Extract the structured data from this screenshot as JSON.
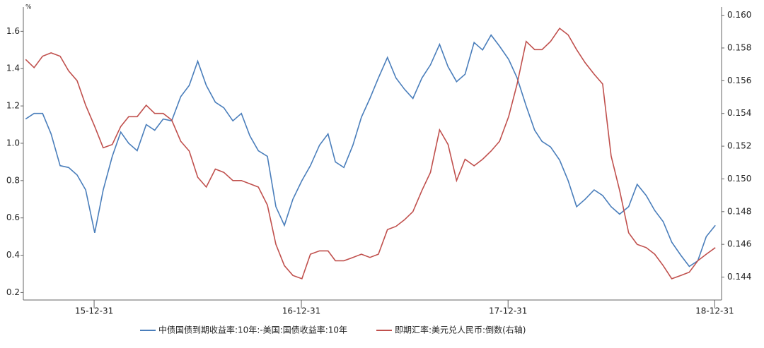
{
  "chart_data": {
    "type": "line",
    "y_unit": "%",
    "x": [
      "2015-09-01",
      "2015-09-16",
      "2015-10-01",
      "2015-10-16",
      "2015-11-01",
      "2015-11-16",
      "2015-12-01",
      "2015-12-16",
      "2016-01-01",
      "2016-01-16",
      "2016-02-01",
      "2016-02-16",
      "2016-03-01",
      "2016-03-16",
      "2016-04-01",
      "2016-04-16",
      "2016-05-01",
      "2016-05-16",
      "2016-06-01",
      "2016-06-16",
      "2016-07-01",
      "2016-07-16",
      "2016-08-01",
      "2016-08-16",
      "2016-09-01",
      "2016-09-16",
      "2016-10-01",
      "2016-10-16",
      "2016-11-01",
      "2016-11-16",
      "2016-12-01",
      "2016-12-16",
      "2017-01-01",
      "2017-01-16",
      "2017-02-01",
      "2017-02-16",
      "2017-03-01",
      "2017-03-16",
      "2017-04-01",
      "2017-04-16",
      "2017-05-01",
      "2017-05-16",
      "2017-06-01",
      "2017-06-16",
      "2017-07-01",
      "2017-07-16",
      "2017-08-01",
      "2017-08-16",
      "2017-09-01",
      "2017-09-16",
      "2017-10-01",
      "2017-10-16",
      "2017-11-01",
      "2017-11-16",
      "2017-12-01",
      "2017-12-16",
      "2018-01-01",
      "2018-01-16",
      "2018-02-01",
      "2018-02-16",
      "2018-03-01",
      "2018-03-16",
      "2018-04-01",
      "2018-04-16",
      "2018-05-01",
      "2018-05-16",
      "2018-06-01",
      "2018-06-16",
      "2018-07-01",
      "2018-07-16",
      "2018-08-01",
      "2018-08-16",
      "2018-09-01",
      "2018-09-16",
      "2018-10-01",
      "2018-10-16",
      "2018-11-01",
      "2018-11-16",
      "2018-12-01",
      "2018-12-16",
      "2019-01-01"
    ],
    "series": [
      {
        "name": "中债国债到期收益率:10年:-美国:国债收益率:10年",
        "color": "#4a7ebb",
        "axis": "y",
        "values": [
          1.13,
          1.16,
          1.16,
          1.05,
          0.88,
          0.87,
          0.83,
          0.75,
          0.52,
          0.75,
          0.93,
          1.06,
          1.0,
          0.96,
          1.1,
          1.07,
          1.13,
          1.12,
          1.25,
          1.31,
          1.44,
          1.31,
          1.22,
          1.19,
          1.12,
          1.16,
          1.04,
          0.96,
          0.93,
          0.66,
          0.56,
          0.7,
          0.8,
          0.88,
          0.99,
          1.05,
          0.9,
          0.87,
          0.99,
          1.14,
          1.24,
          1.35,
          1.46,
          1.35,
          1.29,
          1.24,
          1.35,
          1.42,
          1.53,
          1.41,
          1.33,
          1.37,
          1.54,
          1.5,
          1.58,
          1.52,
          1.45,
          1.35,
          1.2,
          1.07,
          1.01,
          0.98,
          0.91,
          0.8,
          0.66,
          0.7,
          0.75,
          0.72,
          0.66,
          0.62,
          0.66,
          0.78,
          0.72,
          0.64,
          0.58,
          0.47,
          0.4,
          0.34,
          0.37,
          0.5,
          0.56
        ]
      },
      {
        "name": "即期汇率:美元兑人民币:倒数(右轴)",
        "color": "#c0504d",
        "axis": "y2",
        "values": [
          0.1573,
          0.1568,
          0.1575,
          0.1577,
          0.1575,
          0.1566,
          0.156,
          0.1545,
          0.1532,
          0.1519,
          0.1521,
          0.1532,
          0.1538,
          0.1538,
          0.1545,
          0.154,
          0.154,
          0.1536,
          0.1523,
          0.1517,
          0.1501,
          0.1495,
          0.1506,
          0.1504,
          0.1499,
          0.1499,
          0.1497,
          0.1495,
          0.1484,
          0.146,
          0.1447,
          0.1441,
          0.1439,
          0.1454,
          0.1456,
          0.1456,
          0.145,
          0.145,
          0.1452,
          0.1454,
          0.1452,
          0.1454,
          0.1469,
          0.1471,
          0.1475,
          0.148,
          0.1493,
          0.1504,
          0.153,
          0.1521,
          0.1499,
          0.1512,
          0.1508,
          0.1512,
          0.1517,
          0.1523,
          0.1538,
          0.1558,
          0.1584,
          0.1579,
          0.1579,
          0.1584,
          0.1592,
          0.1588,
          0.1579,
          0.1571,
          0.1564,
          0.1558,
          0.1514,
          0.1493,
          0.1467,
          0.146,
          0.1458,
          0.1454,
          0.1447,
          0.1439,
          0.1441,
          0.1443,
          0.145,
          0.1454,
          0.1458
        ]
      }
    ],
    "xlim": [
      "2015-08-28",
      "2019-01-12"
    ],
    "xticks": [
      {
        "value": "2015-12-31",
        "label": "15-12-31"
      },
      {
        "value": "2016-12-31",
        "label": "16-12-31"
      },
      {
        "value": "2017-12-31",
        "label": "17-12-31"
      },
      {
        "value": "2018-12-31",
        "label": "18-12-31"
      }
    ],
    "ylim": [
      0.16,
      1.73
    ],
    "yticks": [
      0.2,
      0.4,
      0.6,
      0.8,
      {
        "value": 1,
        "label": "1.0"
      },
      1.2,
      1.4,
      1.6
    ],
    "y2lim": [
      0.1426,
      0.1605
    ],
    "y2ticks": [
      0.144,
      0.146,
      0.148,
      {
        "value": 0.15,
        "label": "0.150"
      },
      0.152,
      0.154,
      0.156,
      0.158,
      {
        "value": 0.16,
        "label": "0.160"
      }
    ],
    "legend": "bottom"
  }
}
